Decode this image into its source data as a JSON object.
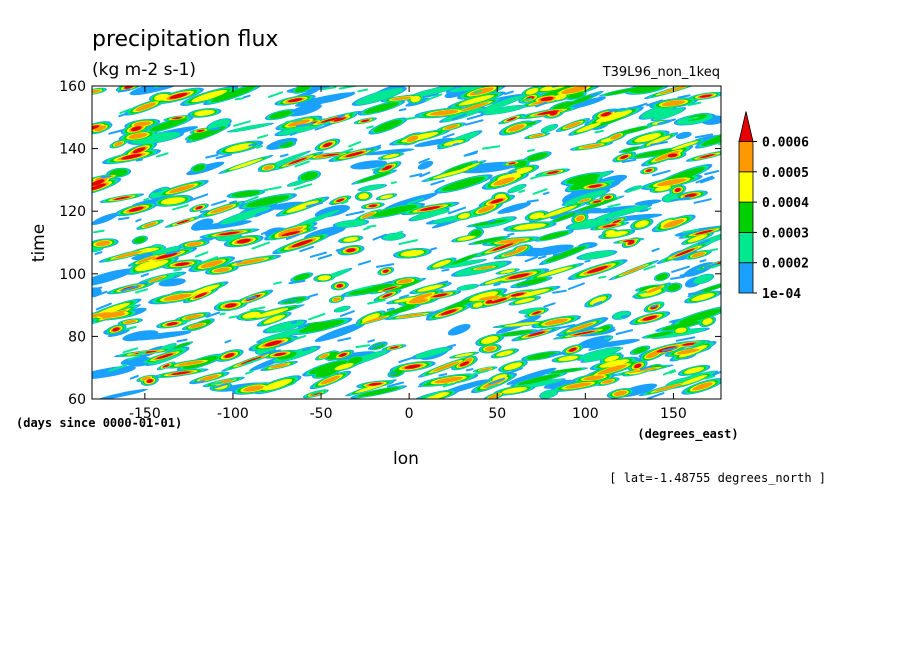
{
  "chart_data": {
    "type": "heatmap",
    "title": "precipitation flux",
    "subtitle": "(kg m-2 s-1)",
    "dataset_label": "T39L96_non_1keq",
    "xlabel": "lon",
    "x_units": "(degrees_east)",
    "ylabel": "time",
    "y_units": "(days since 0000-01-01)",
    "footer": "[ lat=-1.48755 degrees_north ]",
    "xlim": [
      -180,
      177
    ],
    "ylim": [
      60,
      160
    ],
    "x_ticks": [
      -150,
      -100,
      -50,
      0,
      50,
      100,
      150
    ],
    "x_tick_labels": [
      "-150",
      "-100",
      "-50",
      "0",
      "50",
      "100",
      "150"
    ],
    "y_ticks": [
      60,
      80,
      100,
      120,
      140,
      160
    ],
    "y_tick_labels": [
      "60",
      "80",
      "100",
      "120",
      "140",
      "160"
    ],
    "grid": false,
    "legend_position": "right",
    "colorbar": {
      "levels": [
        0.0001,
        0.0002,
        0.0003,
        0.0004,
        0.0005,
        0.0006
      ],
      "labels": [
        "1e-04",
        "0.0002",
        "0.0003",
        "0.0004",
        "0.0005",
        "0.0006"
      ],
      "colors": [
        "#1aa0ff",
        "#00e890",
        "#00d000",
        "#ffff00",
        "#ff9900",
        "#e60000"
      ],
      "extend": "max"
    },
    "value_range": [
      0,
      0.0007
    ],
    "pattern": "eastward-propagating streaks of precipitation"
  }
}
